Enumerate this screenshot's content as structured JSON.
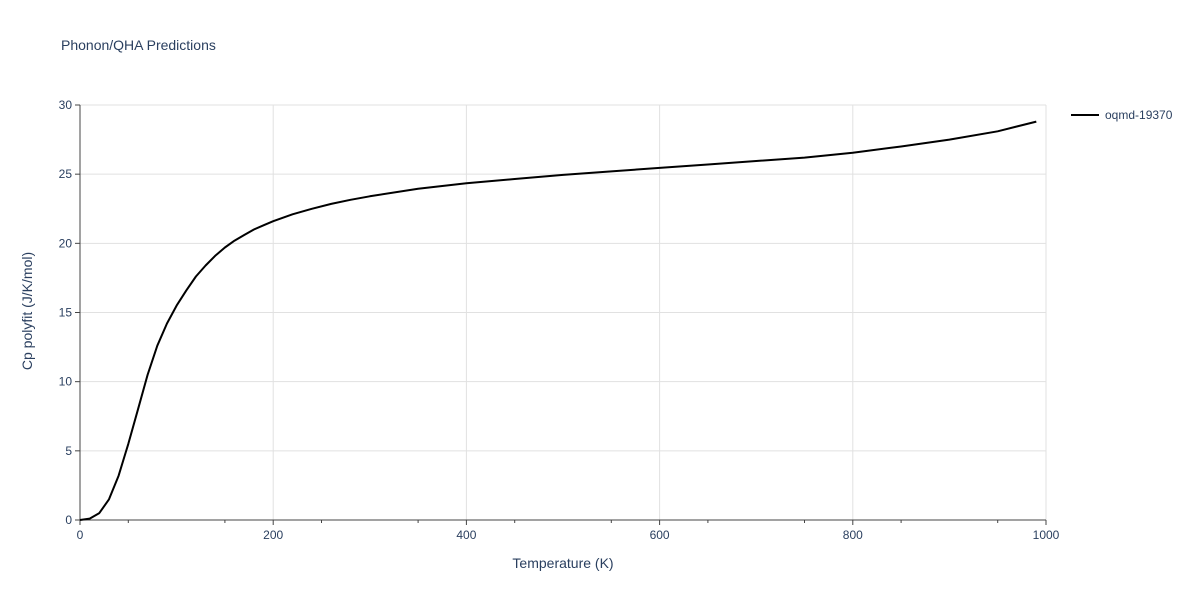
{
  "chart_data": {
    "type": "line",
    "title": "Phonon/QHA Predictions",
    "xlabel": "Temperature (K)",
    "ylabel": "Cp polyfit (J/K/mol)",
    "xlim": [
      0,
      1000
    ],
    "ylim": [
      0,
      30
    ],
    "xticks": [
      0,
      200,
      400,
      600,
      800,
      1000
    ],
    "yticks": [
      0,
      5,
      10,
      15,
      20,
      25,
      30
    ],
    "grid": true,
    "legend_position": "top-right",
    "series": [
      {
        "name": "oqmd-19370",
        "color": "#000000",
        "x": [
          0,
          10,
          20,
          30,
          40,
          50,
          60,
          70,
          80,
          90,
          100,
          110,
          120,
          130,
          140,
          150,
          160,
          170,
          180,
          190,
          200,
          220,
          240,
          260,
          280,
          300,
          350,
          400,
          450,
          500,
          550,
          600,
          650,
          700,
          750,
          800,
          850,
          900,
          950,
          990
        ],
        "y": [
          0,
          0.1,
          0.5,
          1.5,
          3.2,
          5.5,
          8.0,
          10.5,
          12.6,
          14.2,
          15.5,
          16.6,
          17.6,
          18.4,
          19.1,
          19.7,
          20.2,
          20.6,
          21.0,
          21.3,
          21.6,
          22.1,
          22.5,
          22.85,
          23.15,
          23.4,
          23.95,
          24.35,
          24.65,
          24.95,
          25.2,
          25.45,
          25.7,
          25.95,
          26.2,
          26.55,
          27.0,
          27.5,
          28.1,
          28.8
        ]
      }
    ]
  }
}
